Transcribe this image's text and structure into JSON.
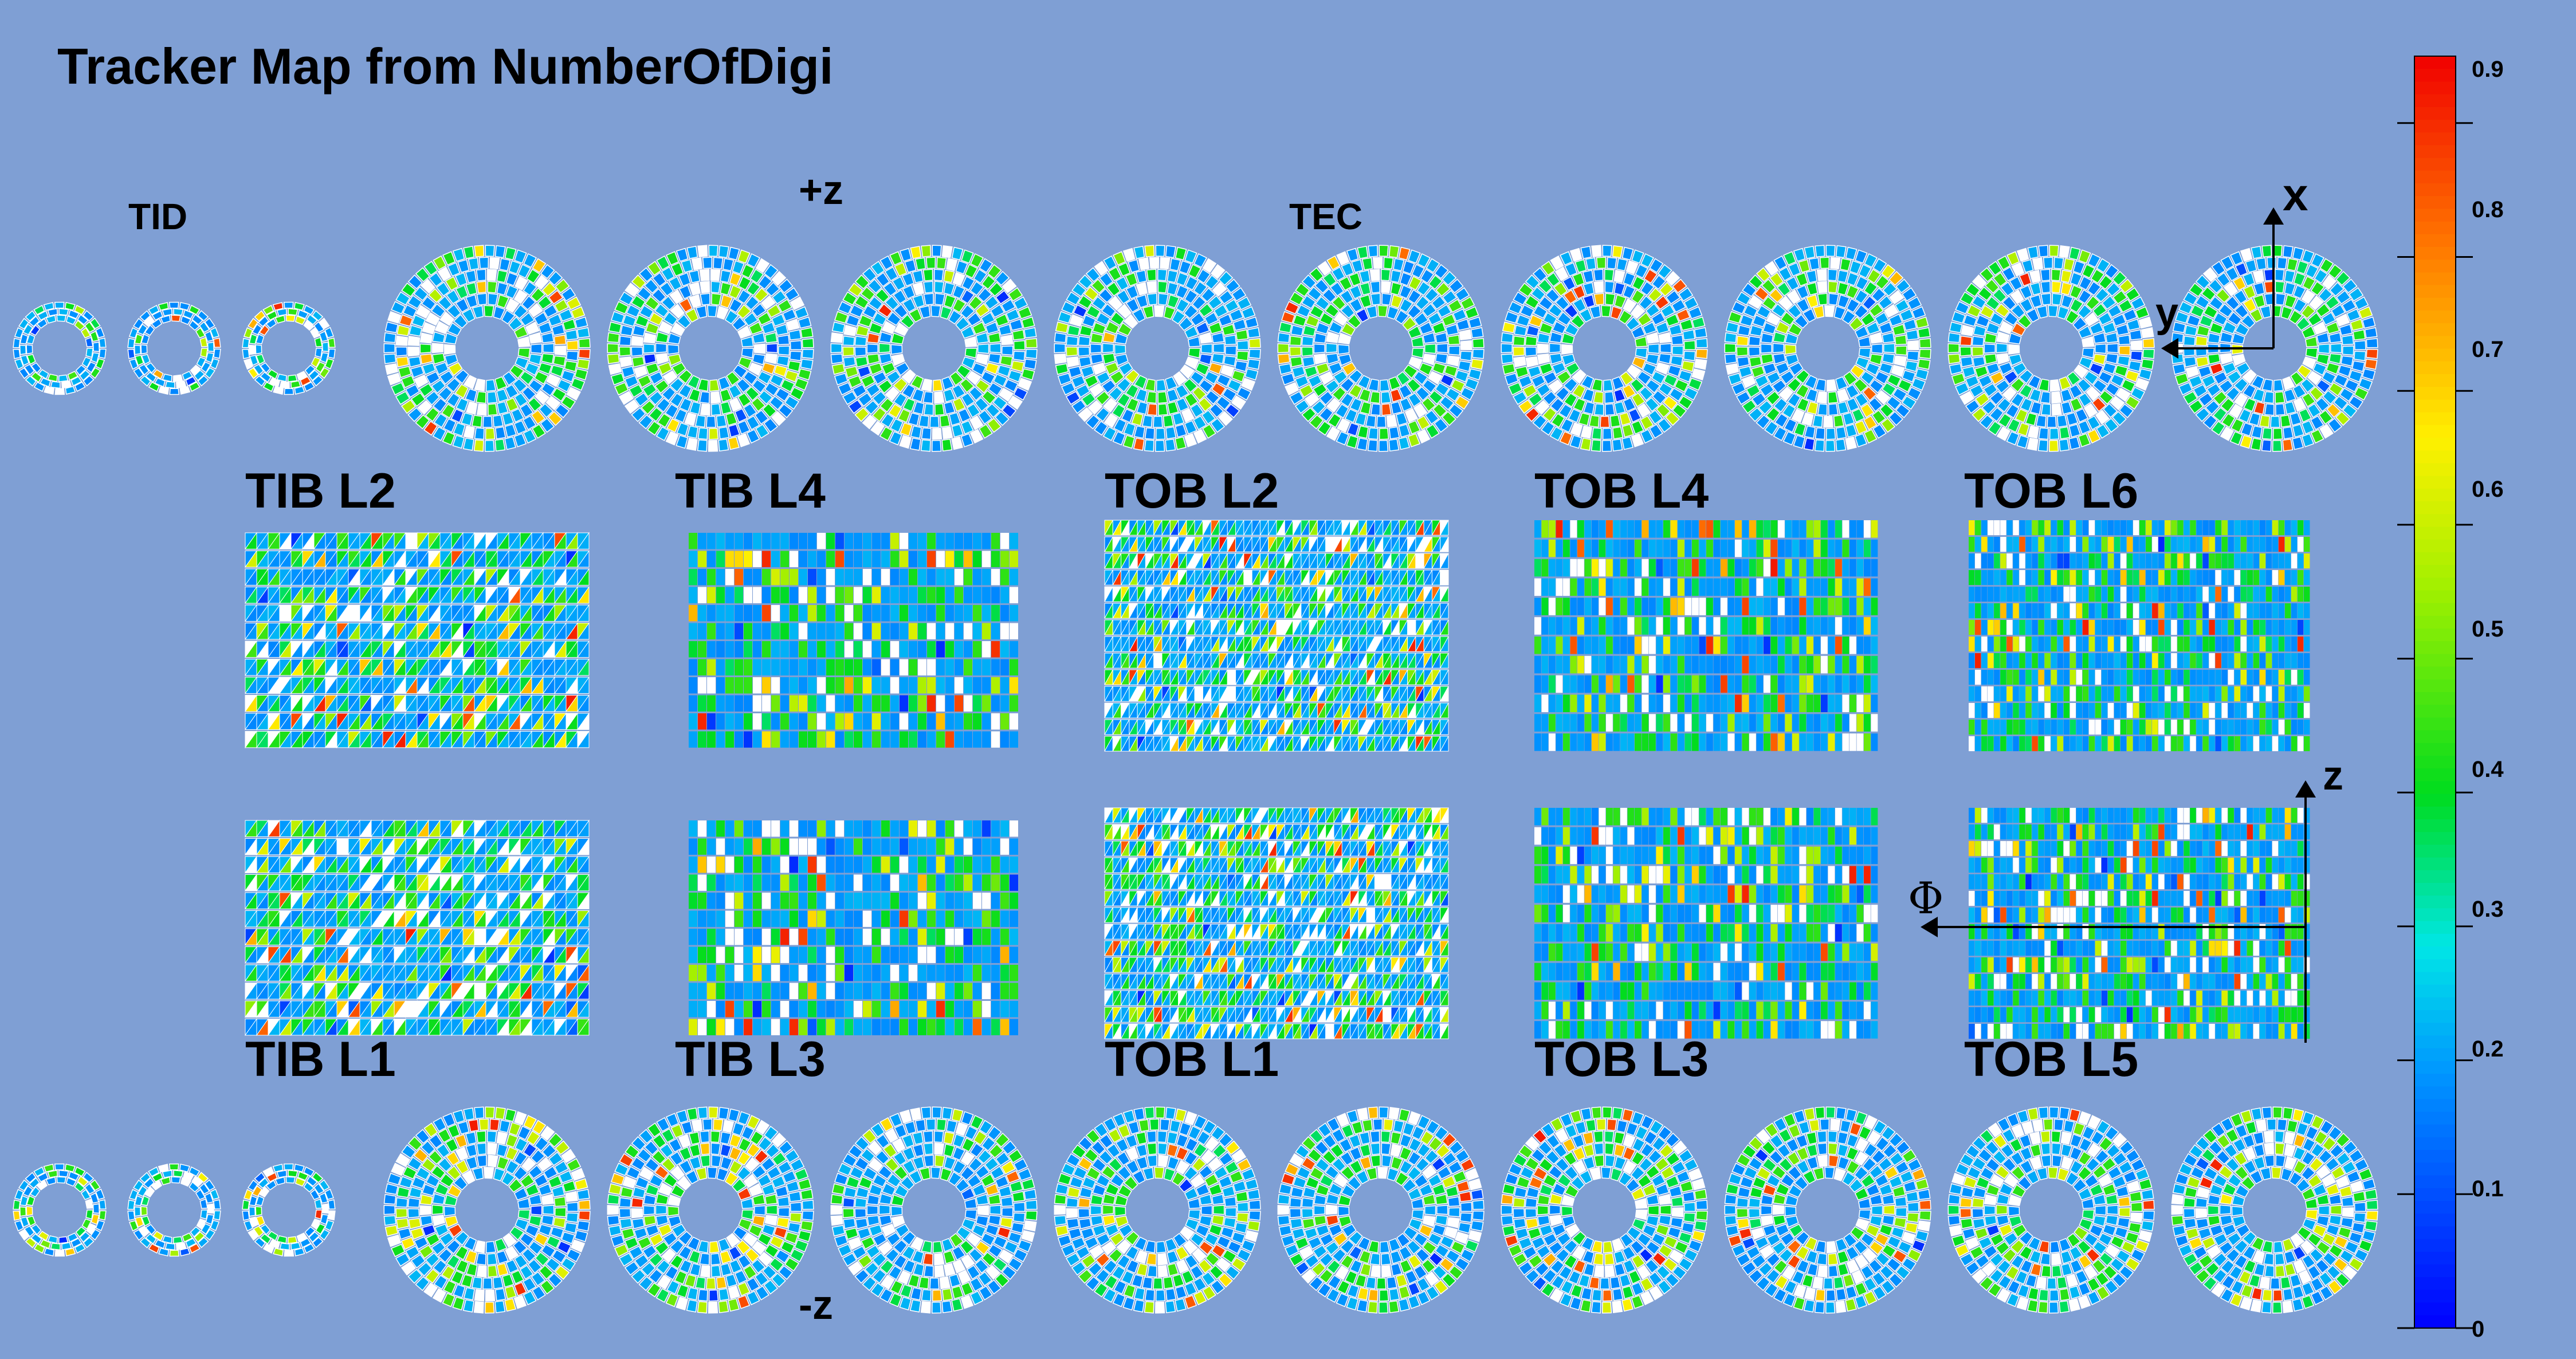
{
  "chart_data": {
    "type": "heatmap",
    "title": "Tracker Map from  NumberOfDigi",
    "colorbar": {
      "min": 0,
      "max": 0.95,
      "ticks": [
        "0",
        "0.1",
        "0.2",
        "0.3",
        "0.4",
        "0.5",
        "0.6",
        "0.7",
        "0.8",
        "0.9"
      ],
      "palette": "rainbow (blue to red)"
    },
    "labels": {
      "tid": "TID",
      "tec": "TEC",
      "plus_z": "+z",
      "minus_z": "-z",
      "tib_l1": "TIB L1",
      "tib_l2": "TIB L2",
      "tib_l3": "TIB L3",
      "tib_l4": "TIB L4",
      "tob_l1": "TOB L1",
      "tob_l2": "TOB L2",
      "tob_l3": "TOB L3",
      "tob_l4": "TOB L4",
      "tob_l5": "TOB L5",
      "tob_l6": "TOB L6"
    },
    "axes": {
      "endcap_x": "x",
      "endcap_y": "y",
      "barrel_z": "z",
      "barrel_phi": "Φ"
    },
    "module_occupancy_distribution": {
      "typical_value": 0.2,
      "typical_range": [
        0.15,
        0.45
      ],
      "max_value": 0.9,
      "empty_modules": "white"
    }
  }
}
